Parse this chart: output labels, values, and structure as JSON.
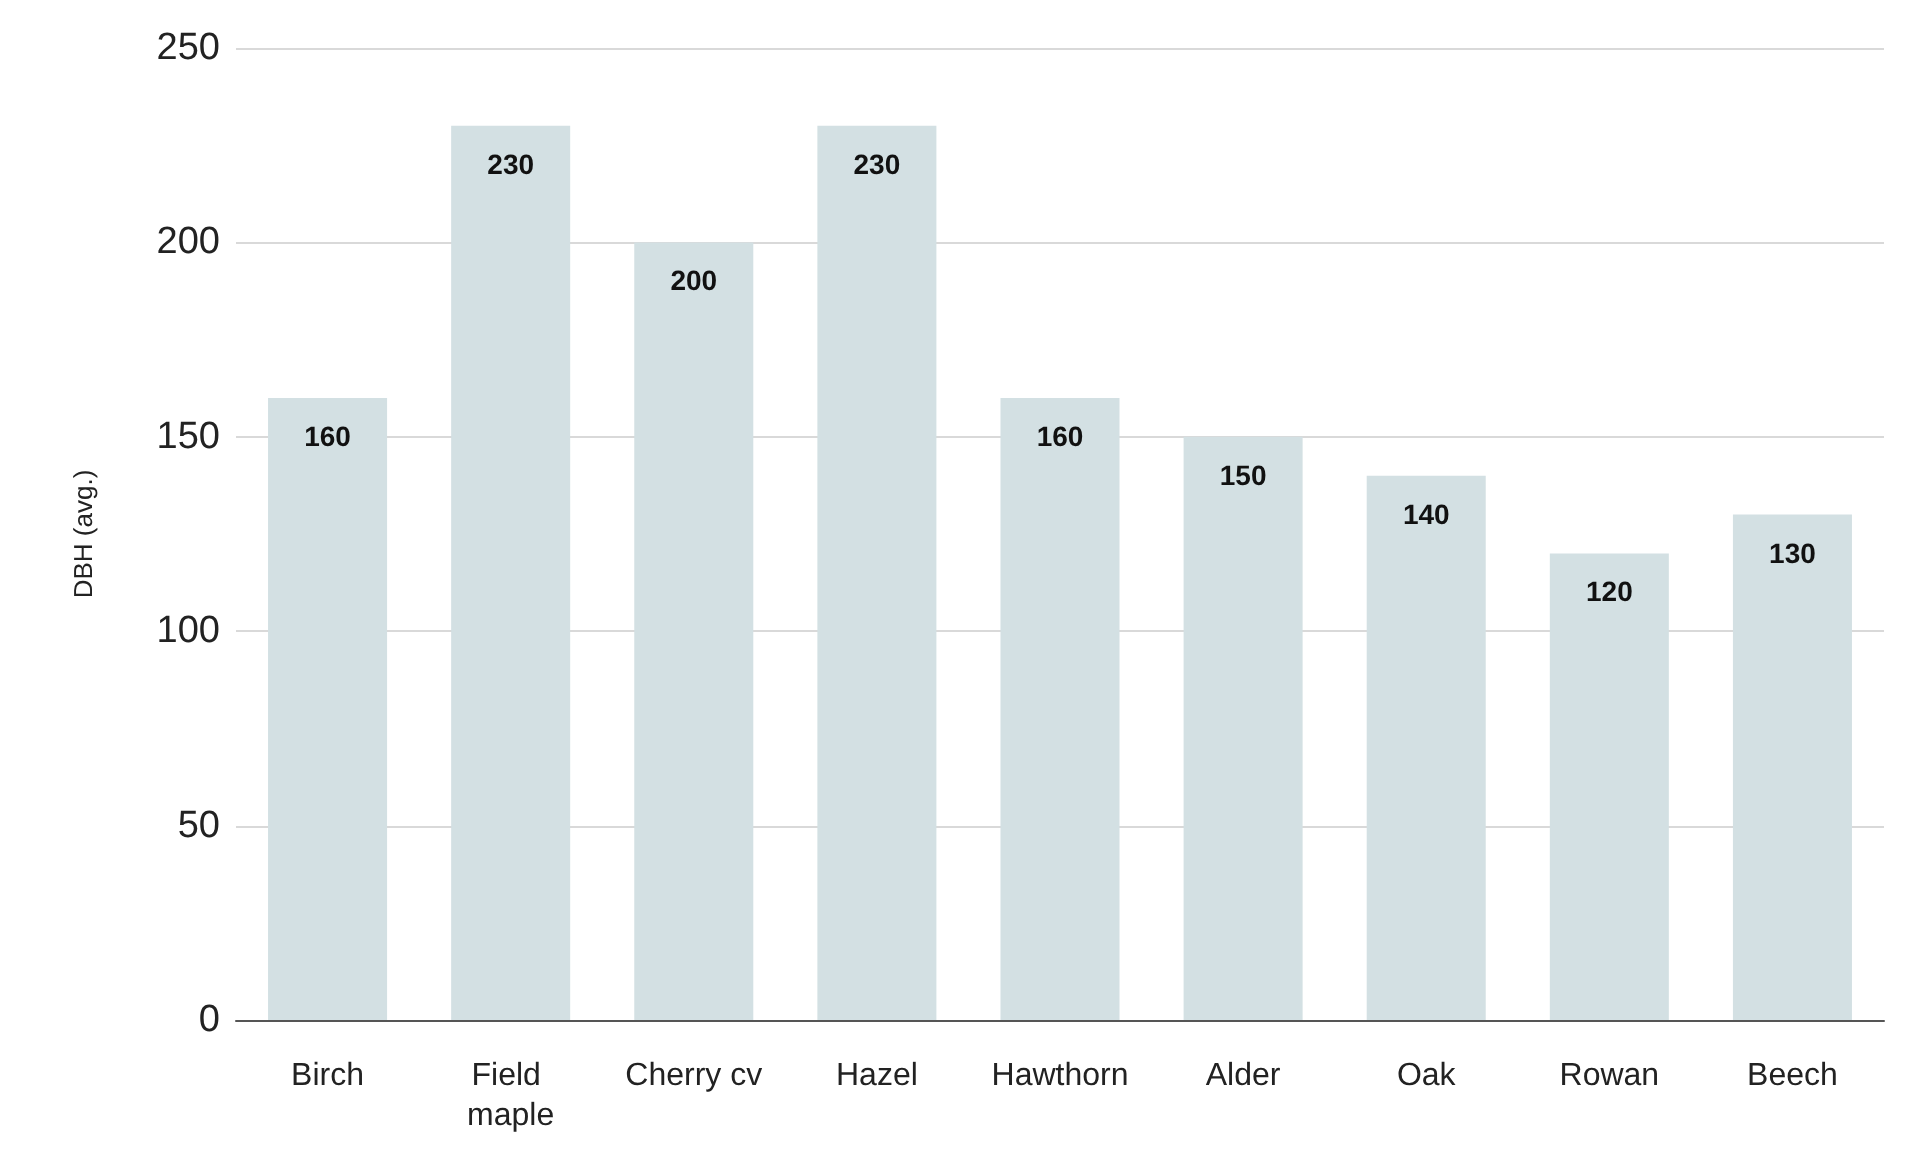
{
  "chart_data": {
    "type": "bar",
    "ylabel": "DBH (avg.)",
    "categories": [
      "Birch",
      "Field maple",
      "Cherry cv",
      "Hazel",
      "Hawthorn",
      "Alder",
      "Oak",
      "Rowan",
      "Beech"
    ],
    "values": [
      160,
      230,
      200,
      230,
      160,
      150,
      140,
      120,
      130
    ],
    "color": "#d3e0e3",
    "ylim": [
      0,
      250
    ],
    "yticks": [
      0,
      50,
      100,
      150,
      200,
      250
    ],
    "grid": "y",
    "data_labels": true
  }
}
